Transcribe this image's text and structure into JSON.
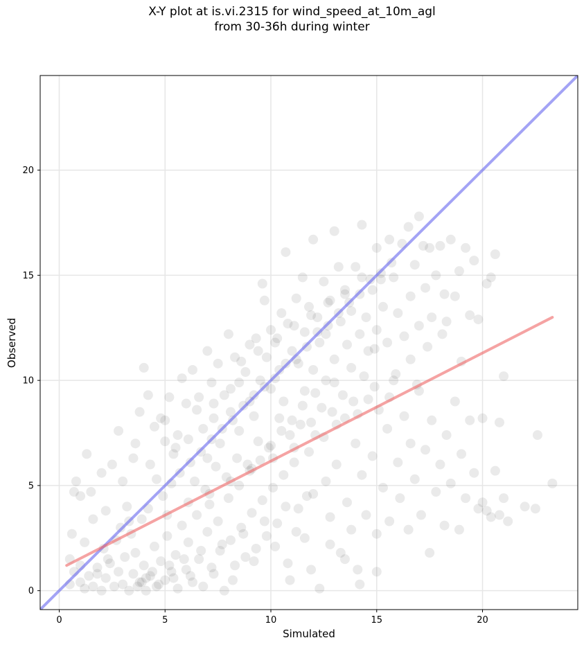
{
  "chart_data": {
    "type": "scatter",
    "title_line1": "X-Y plot at is.vi.2315 for wind_speed_at_10m_agl",
    "title_line2": "from 30-36h during winter",
    "xlabel": "Simulated",
    "ylabel": "Observed",
    "xlim": [
      -0.9,
      24.5
    ],
    "ylim": [
      -0.9,
      24.5
    ],
    "xticks": [
      0,
      5,
      10,
      15,
      20
    ],
    "yticks": [
      0,
      5,
      10,
      15,
      20
    ],
    "grid": true,
    "point_color": "#333333",
    "lines": [
      {
        "role": "1:1 line",
        "color": "#6666ee",
        "x": [
          -0.9,
          24.5
        ],
        "y": [
          -0.9,
          24.5
        ]
      },
      {
        "role": "regression fit",
        "color": "#ee6666",
        "x": [
          0.35,
          23.3
        ],
        "y": [
          1.2,
          13.0
        ]
      }
    ],
    "points": [
      [
        0.5,
        1.5
      ],
      [
        0.6,
        2.7
      ],
      [
        0.7,
        4.7
      ],
      [
        0.8,
        5.2
      ],
      [
        1.0,
        1.2
      ],
      [
        1.0,
        4.5
      ],
      [
        1.2,
        2.3
      ],
      [
        1.3,
        6.5
      ],
      [
        1.5,
        4.7
      ],
      [
        1.6,
        3.4
      ],
      [
        1.8,
        0.8
      ],
      [
        2.0,
        5.6
      ],
      [
        2.2,
        3.8
      ],
      [
        2.5,
        6.0
      ],
      [
        2.8,
        7.6
      ],
      [
        3.0,
        5.2
      ],
      [
        3.2,
        4.0
      ],
      [
        3.3,
        3.3
      ],
      [
        3.5,
        6.3
      ],
      [
        3.6,
        7.0
      ],
      [
        3.8,
        8.5
      ],
      [
        4.0,
        10.6
      ],
      [
        4.2,
        9.3
      ],
      [
        4.3,
        6.0
      ],
      [
        4.5,
        7.8
      ],
      [
        4.6,
        5.3
      ],
      [
        4.8,
        8.2
      ],
      [
        5.0,
        7.1
      ],
      [
        5.0,
        8.1
      ],
      [
        5.2,
        9.2
      ],
      [
        5.4,
        6.5
      ],
      [
        5.6,
        7.4
      ],
      [
        5.8,
        10.1
      ],
      [
        6.0,
        8.9
      ],
      [
        6.1,
        7.2
      ],
      [
        6.3,
        10.5
      ],
      [
        6.5,
        8.6
      ],
      [
        6.6,
        9.2
      ],
      [
        6.8,
        7.7
      ],
      [
        7.0,
        11.4
      ],
      [
        7.0,
        6.3
      ],
      [
        7.2,
        9.9
      ],
      [
        7.3,
        8.2
      ],
      [
        7.5,
        10.8
      ],
      [
        7.6,
        7.0
      ],
      [
        7.8,
        9.3
      ],
      [
        8.0,
        12.2
      ],
      [
        8.1,
        8.5
      ],
      [
        8.3,
        11.1
      ],
      [
        8.5,
        9.9
      ],
      [
        8.5,
        7.6
      ],
      [
        8.8,
        10.4
      ],
      [
        9.0,
        9.0
      ],
      [
        9.0,
        11.7
      ],
      [
        9.2,
        8.3
      ],
      [
        9.3,
        12.0
      ],
      [
        9.5,
        10.0
      ],
      [
        9.6,
        14.6
      ],
      [
        9.7,
        13.8
      ],
      [
        9.8,
        11.1
      ],
      [
        10.0,
        12.4
      ],
      [
        10.0,
        9.6
      ],
      [
        10.2,
        11.8
      ],
      [
        10.4,
        10.5
      ],
      [
        10.5,
        13.2
      ],
      [
        10.7,
        16.1
      ],
      [
        10.8,
        12.7
      ],
      [
        11.0,
        11.4
      ],
      [
        11.2,
        13.9
      ],
      [
        11.3,
        10.8
      ],
      [
        11.5,
        14.9
      ],
      [
        11.6,
        12.3
      ],
      [
        11.8,
        13.5
      ],
      [
        12.0,
        16.7
      ],
      [
        12.0,
        10.5
      ],
      [
        12.2,
        13.0
      ],
      [
        12.3,
        11.8
      ],
      [
        12.5,
        14.7
      ],
      [
        12.6,
        12.2
      ],
      [
        12.8,
        13.8
      ],
      [
        13.0,
        17.1
      ],
      [
        13.0,
        11.0
      ],
      [
        13.2,
        15.4
      ],
      [
        13.3,
        12.8
      ],
      [
        13.5,
        14.1
      ],
      [
        13.6,
        11.7
      ],
      [
        13.8,
        13.3
      ],
      [
        14.0,
        15.4
      ],
      [
        14.2,
        12.2
      ],
      [
        14.3,
        17.4
      ],
      [
        14.5,
        13.0
      ],
      [
        14.6,
        11.4
      ],
      [
        14.8,
        14.3
      ],
      [
        15.0,
        16.3
      ],
      [
        15.0,
        12.4
      ],
      [
        15.2,
        14.8
      ],
      [
        15.3,
        13.5
      ],
      [
        15.5,
        11.8
      ],
      [
        15.6,
        16.7
      ],
      [
        15.8,
        14.9
      ],
      [
        16.0,
        13.2
      ],
      [
        16.2,
        16.5
      ],
      [
        16.3,
        12.1
      ],
      [
        16.5,
        17.3
      ],
      [
        16.6,
        14.0
      ],
      [
        16.8,
        15.5
      ],
      [
        17.0,
        17.8
      ],
      [
        17.0,
        12.6
      ],
      [
        17.2,
        16.4
      ],
      [
        17.3,
        14.4
      ],
      [
        17.5,
        16.3
      ],
      [
        17.6,
        13.0
      ],
      [
        17.8,
        15.0
      ],
      [
        18.0,
        16.4
      ],
      [
        18.2,
        14.1
      ],
      [
        18.3,
        12.8
      ],
      [
        18.5,
        16.7
      ],
      [
        18.7,
        14.0
      ],
      [
        18.9,
        15.2
      ],
      [
        19.0,
        10.9
      ],
      [
        19.2,
        16.3
      ],
      [
        19.4,
        13.1
      ],
      [
        19.6,
        15.7
      ],
      [
        19.8,
        12.9
      ],
      [
        20.0,
        8.2
      ],
      [
        20.2,
        14.6
      ],
      [
        20.4,
        14.9
      ],
      [
        20.6,
        16.0
      ],
      [
        20.8,
        8.0
      ],
      [
        21.0,
        10.2
      ],
      [
        0.5,
        0.3
      ],
      [
        0.7,
        0.9
      ],
      [
        1.0,
        0.4
      ],
      [
        1.2,
        0.1
      ],
      [
        1.4,
        0.7
      ],
      [
        1.6,
        0.2
      ],
      [
        1.8,
        1.1
      ],
      [
        2.0,
        0.0
      ],
      [
        2.2,
        0.6
      ],
      [
        2.4,
        1.3
      ],
      [
        2.6,
        0.2
      ],
      [
        2.8,
        0.9
      ],
      [
        3.0,
        0.3
      ],
      [
        3.1,
        1.6
      ],
      [
        3.3,
        0.0
      ],
      [
        3.5,
        0.8
      ],
      [
        3.6,
        1.8
      ],
      [
        3.8,
        0.4
      ],
      [
        4.0,
        1.2
      ],
      [
        4.1,
        0.0
      ],
      [
        4.3,
        0.7
      ],
      [
        4.5,
        2.1
      ],
      [
        4.6,
        0.2
      ],
      [
        4.8,
        1.4
      ],
      [
        5.0,
        0.5
      ],
      [
        5.1,
        2.6
      ],
      [
        5.3,
        0.9
      ],
      [
        5.5,
        1.7
      ],
      [
        5.6,
        0.1
      ],
      [
        5.8,
        3.1
      ],
      [
        6.0,
        1.0
      ],
      [
        6.1,
        2.3
      ],
      [
        6.3,
        0.4
      ],
      [
        6.5,
        3.6
      ],
      [
        6.6,
        1.5
      ],
      [
        6.8,
        0.2
      ],
      [
        7.0,
        2.8
      ],
      [
        7.1,
        4.1
      ],
      [
        7.3,
        0.8
      ],
      [
        7.5,
        3.3
      ],
      [
        7.6,
        1.9
      ],
      [
        7.8,
        0.0
      ],
      [
        8.0,
        4.4
      ],
      [
        8.1,
        2.4
      ],
      [
        8.3,
        1.2
      ],
      [
        8.5,
        5.0
      ],
      [
        8.6,
        3.0
      ],
      [
        8.8,
        1.6
      ],
      [
        9.0,
        5.7
      ],
      [
        9.1,
        3.7
      ],
      [
        9.3,
        2.0
      ],
      [
        9.5,
        6.2
      ],
      [
        9.6,
        4.3
      ],
      [
        9.8,
        2.6
      ],
      [
        10.0,
        6.9
      ],
      [
        10.1,
        4.9
      ],
      [
        10.3,
        3.2
      ],
      [
        10.5,
        7.6
      ],
      [
        10.6,
        5.5
      ],
      [
        10.8,
        1.3
      ],
      [
        11.0,
        8.1
      ],
      [
        11.1,
        6.1
      ],
      [
        11.3,
        3.9
      ],
      [
        11.5,
        8.8
      ],
      [
        11.6,
        2.5
      ],
      [
        11.8,
        6.6
      ],
      [
        12.0,
        4.6
      ],
      [
        12.1,
        9.4
      ],
      [
        12.3,
        0.1
      ],
      [
        12.5,
        7.3
      ],
      [
        12.6,
        5.2
      ],
      [
        12.8,
        3.5
      ],
      [
        13.0,
        9.9
      ],
      [
        13.1,
        6.0
      ],
      [
        13.3,
        1.8
      ],
      [
        13.5,
        8.2
      ],
      [
        13.6,
        4.2
      ],
      [
        13.8,
        2.9
      ],
      [
        14.0,
        7.0
      ],
      [
        14.1,
        1.0
      ],
      [
        14.3,
        5.5
      ],
      [
        14.5,
        3.6
      ],
      [
        14.6,
        9.1
      ],
      [
        14.8,
        6.4
      ],
      [
        15.0,
        2.7
      ],
      [
        15.1,
        8.6
      ],
      [
        15.3,
        4.9
      ],
      [
        15.5,
        7.7
      ],
      [
        15.6,
        3.3
      ],
      [
        15.8,
        10.0
      ],
      [
        16.0,
        6.1
      ],
      [
        16.1,
        4.4
      ],
      [
        16.3,
        8.3
      ],
      [
        16.5,
        2.9
      ],
      [
        16.6,
        7.0
      ],
      [
        16.8,
        5.3
      ],
      [
        17.0,
        9.5
      ],
      [
        17.1,
        3.6
      ],
      [
        17.3,
        6.7
      ],
      [
        17.5,
        1.8
      ],
      [
        17.6,
        8.1
      ],
      [
        17.8,
        4.7
      ],
      [
        18.0,
        6.0
      ],
      [
        18.2,
        3.1
      ],
      [
        18.3,
        7.4
      ],
      [
        18.5,
        5.1
      ],
      [
        18.7,
        9.0
      ],
      [
        18.9,
        2.9
      ],
      [
        19.0,
        6.5
      ],
      [
        19.2,
        4.4
      ],
      [
        19.4,
        8.1
      ],
      [
        19.6,
        5.6
      ],
      [
        19.8,
        3.9
      ],
      [
        20.0,
        4.2
      ],
      [
        20.2,
        3.8
      ],
      [
        20.4,
        3.5
      ],
      [
        20.6,
        5.7
      ],
      [
        20.8,
        3.6
      ],
      [
        21.0,
        4.4
      ],
      [
        21.2,
        3.3
      ],
      [
        22.0,
        4.0
      ],
      [
        22.5,
        3.9
      ],
      [
        22.6,
        7.4
      ],
      [
        23.3,
        5.1
      ],
      [
        15.0,
        0.9
      ],
      [
        14.2,
        0.3
      ],
      [
        13.5,
        1.5
      ],
      [
        12.8,
        2.2
      ],
      [
        11.9,
        1.0
      ],
      [
        10.9,
        0.5
      ],
      [
        3.9,
        0.4
      ],
      [
        4.1,
        0.6
      ],
      [
        3.7,
        0.2
      ],
      [
        4.4,
        0.9
      ],
      [
        4.7,
        0.3
      ],
      [
        5.2,
        1.2
      ],
      [
        5.4,
        0.6
      ],
      [
        5.9,
        1.5
      ],
      [
        6.2,
        0.7
      ],
      [
        6.7,
        1.9
      ],
      [
        7.2,
        1.1
      ],
      [
        7.7,
        2.2
      ],
      [
        8.2,
        0.5
      ],
      [
        8.7,
        2.7
      ],
      [
        9.2,
        1.4
      ],
      [
        9.7,
        3.3
      ],
      [
        10.2,
        2.1
      ],
      [
        10.7,
        4.0
      ],
      [
        11.2,
        2.8
      ],
      [
        11.7,
        4.5
      ],
      [
        2.1,
        2.0
      ],
      [
        2.3,
        1.5
      ],
      [
        2.7,
        2.4
      ],
      [
        2.9,
        3.0
      ],
      [
        3.4,
        2.7
      ],
      [
        3.9,
        3.4
      ],
      [
        4.2,
        3.9
      ],
      [
        4.9,
        4.5
      ],
      [
        5.3,
        5.1
      ],
      [
        5.7,
        5.6
      ],
      [
        6.2,
        6.1
      ],
      [
        6.7,
        6.6
      ],
      [
        7.2,
        7.2
      ],
      [
        7.7,
        7.7
      ],
      [
        8.2,
        8.1
      ],
      [
        8.7,
        8.8
      ],
      [
        9.2,
        9.3
      ],
      [
        9.7,
        9.7
      ],
      [
        10.2,
        10.1
      ],
      [
        10.7,
        10.8
      ],
      [
        11.2,
        11.0
      ],
      [
        11.7,
        11.6
      ],
      [
        12.2,
        12.3
      ],
      [
        12.7,
        12.6
      ],
      [
        13.2,
        13.2
      ],
      [
        13.7,
        13.7
      ],
      [
        14.2,
        14.1
      ],
      [
        14.7,
        14.8
      ],
      [
        15.2,
        15.1
      ],
      [
        15.7,
        15.6
      ],
      [
        5.5,
        6.8
      ],
      [
        6.4,
        5.2
      ],
      [
        7.4,
        5.9
      ],
      [
        8.4,
        6.3
      ],
      [
        9.4,
        7.1
      ],
      [
        10.4,
        8.2
      ],
      [
        11.4,
        7.9
      ],
      [
        12.4,
        8.7
      ],
      [
        13.4,
        9.3
      ],
      [
        14.4,
        10.2
      ],
      [
        6.9,
        4.8
      ],
      [
        7.9,
        5.4
      ],
      [
        8.9,
        6.0
      ],
      [
        9.9,
        6.8
      ],
      [
        10.9,
        7.4
      ],
      [
        11.9,
        8.0
      ],
      [
        12.9,
        8.5
      ],
      [
        13.9,
        9.0
      ],
      [
        14.9,
        9.7
      ],
      [
        15.9,
        10.3
      ],
      [
        5.1,
        3.6
      ],
      [
        6.1,
        4.2
      ],
      [
        7.1,
        4.6
      ],
      [
        8.1,
        5.2
      ],
      [
        9.1,
        5.8
      ],
      [
        10.1,
        6.3
      ],
      [
        11.1,
        6.8
      ],
      [
        12.1,
        7.4
      ],
      [
        13.1,
        7.9
      ],
      [
        14.1,
        8.4
      ],
      [
        8.6,
        10.9
      ],
      [
        9.4,
        11.4
      ],
      [
        10.3,
        12.0
      ],
      [
        11.1,
        12.6
      ],
      [
        11.9,
        13.1
      ],
      [
        12.7,
        13.7
      ],
      [
        13.5,
        14.3
      ],
      [
        14.3,
        14.9
      ],
      [
        8.1,
        9.6
      ],
      [
        7.3,
        8.9
      ],
      [
        16.6,
        11.0
      ],
      [
        17.4,
        11.6
      ],
      [
        18.1,
        12.2
      ],
      [
        16.9,
        9.8
      ],
      [
        15.6,
        9.2
      ],
      [
        14.9,
        11.5
      ],
      [
        13.8,
        10.6
      ],
      [
        12.6,
        10.0
      ],
      [
        11.6,
        9.5
      ],
      [
        10.6,
        9.0
      ]
    ]
  }
}
